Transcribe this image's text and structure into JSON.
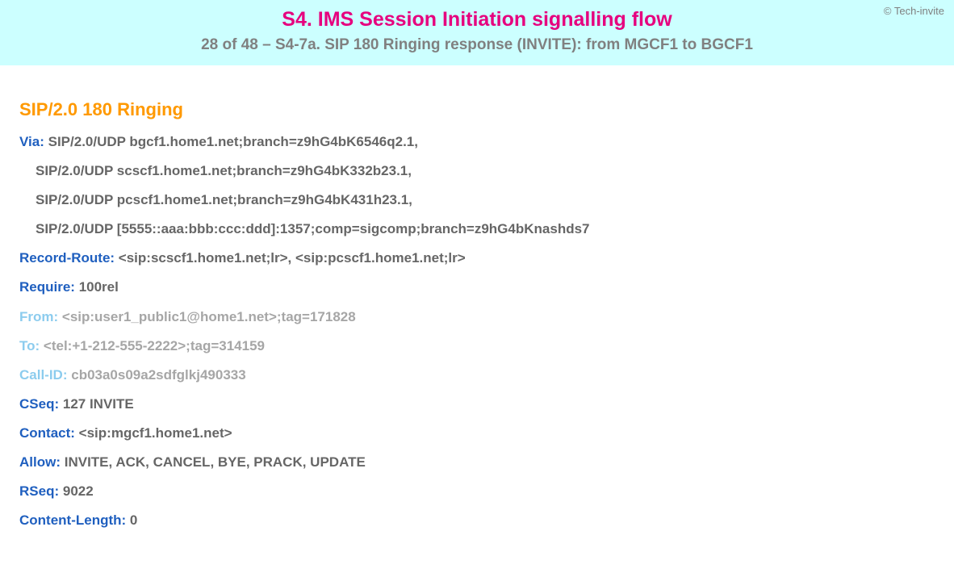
{
  "header": {
    "copyright": "© Tech-invite",
    "title": "S4. IMS Session Initiation signalling flow",
    "subtitle": "28 of 48 – S4-7a. SIP 180 Ringing response (INVITE): from MGCF1 to BGCF1"
  },
  "sip": {
    "response_line": "SIP/2.0 180 Ringing",
    "headers": [
      {
        "name": "Via",
        "value": "SIP/2.0/UDP bgcf1.home1.net;branch=z9hG4bK6546q2.1,",
        "light": false,
        "continuation": false
      },
      {
        "name": "",
        "value": "SIP/2.0/UDP scscf1.home1.net;branch=z9hG4bK332b23.1,",
        "light": false,
        "continuation": true
      },
      {
        "name": "",
        "value": "SIP/2.0/UDP pcscf1.home1.net;branch=z9hG4bK431h23.1,",
        "light": false,
        "continuation": true
      },
      {
        "name": "",
        "value": "SIP/2.0/UDP [5555::aaa:bbb:ccc:ddd]:1357;comp=sigcomp;branch=z9hG4bKnashds7",
        "light": false,
        "continuation": true
      },
      {
        "name": "Record-Route",
        "value": "<sip:scscf1.home1.net;lr>, <sip:pcscf1.home1.net;lr>",
        "light": false,
        "continuation": false
      },
      {
        "name": "Require",
        "value": "100rel",
        "light": false,
        "continuation": false
      },
      {
        "name": "From",
        "value": "<sip:user1_public1@home1.net>;tag=171828",
        "light": true,
        "continuation": false
      },
      {
        "name": "To",
        "value": "<tel:+1-212-555-2222>;tag=314159",
        "light": true,
        "continuation": false
      },
      {
        "name": "Call-ID",
        "value": "cb03a0s09a2sdfglkj490333",
        "light": true,
        "continuation": false
      },
      {
        "name": "CSeq",
        "value": "127 INVITE",
        "light": false,
        "continuation": false
      },
      {
        "name": "Contact",
        "value": "<sip:mgcf1.home1.net>",
        "light": false,
        "continuation": false
      },
      {
        "name": "Allow",
        "value": "INVITE, ACK, CANCEL, BYE, PRACK, UPDATE",
        "light": false,
        "continuation": false
      },
      {
        "name": "RSeq",
        "value": "9022",
        "light": false,
        "continuation": false
      },
      {
        "name": "Content-Length",
        "value": "0",
        "light": false,
        "continuation": false
      }
    ]
  },
  "colors": {
    "header_bg": "#ccffff",
    "title_color": "#e6007e",
    "subtitle_color": "#808080",
    "response_color": "#ff9900",
    "header_name_color": "#1f5fbf",
    "header_name_light_color": "#8cccee",
    "header_value_color": "#666666",
    "header_value_light_color": "#a6a6a6",
    "copyright_color": "#808080"
  },
  "fontsize": {
    "title": 25,
    "subtitle": 19,
    "response": 22,
    "headers": 17,
    "copyright": 13
  }
}
